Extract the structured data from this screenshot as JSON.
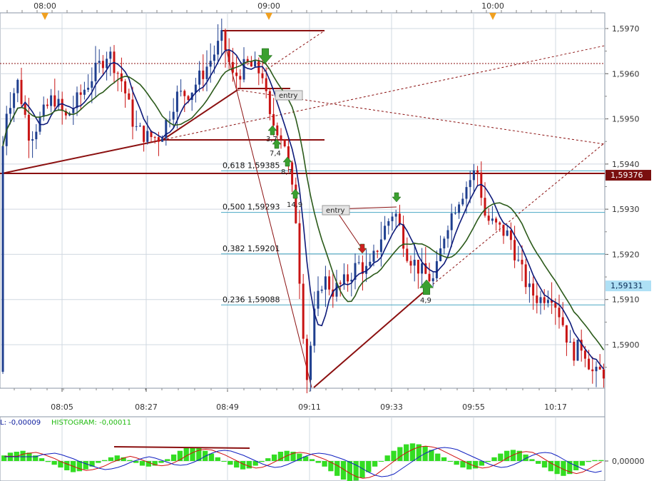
{
  "colors": {
    "background": "#ffffff",
    "grid": "#d0d8e0",
    "bull_candle": "#1f3f8f",
    "bear_candle": "#c81414",
    "ma_fast": "#0d1a7a",
    "ma_slow": "#2b5a1a",
    "trendline": "#8b1010",
    "fib_line": "#4aa8c4",
    "macd_hist": "#33dd22",
    "macd_line_a": "#d01010",
    "macd_line_b": "#1020c0",
    "price_tag_dark": "#7a0f0f",
    "price_tag_light": "#aee0f5",
    "arrow_buy": "#3aa030",
    "arrow_sell": "#d02020",
    "time_marker": "#f0a020"
  },
  "chart_data": {
    "type": "candlestick",
    "x_ticks": [
      "08:05",
      "08:27",
      "08:49",
      "09:11",
      "09:33",
      "09:55",
      "10:17"
    ],
    "top_time_labels": [
      "08:00",
      "09:00",
      "10:00"
    ],
    "y_ticks": [
      "1,5970",
      "1,5960",
      "1,5950",
      "1,5940",
      "1,5930",
      "1,5920",
      "1,5910",
      "1,5900"
    ],
    "ylim": [
      1.589,
      1.5972
    ],
    "price_tags": [
      {
        "label": "1,59376",
        "value": 1.59376,
        "style": "dark"
      },
      {
        "label": "1,59131",
        "value": 1.59131,
        "style": "light"
      }
    ],
    "fibonacci": [
      {
        "label": "0,618 1,59385",
        "value": 1.59385
      },
      {
        "label": "0,500 1,59293",
        "value": 1.59293
      },
      {
        "label": "0,382 1,59201",
        "value": 1.59201
      },
      {
        "label": "0,236 1,59088",
        "value": 1.59088
      }
    ],
    "annotations": [
      {
        "text": "entry"
      },
      {
        "text": "entry"
      },
      {
        "text": "3,7"
      },
      {
        "text": "7,4"
      },
      {
        "text": "8,7"
      },
      {
        "text": "14,9"
      },
      {
        "text": "4,9"
      }
    ],
    "macd": {
      "header": "L: -0,00009",
      "histogram_label": "HISTOGRAM: -0,00011",
      "zero_label": "0,00000",
      "histogram": [
        0.3,
        0.45,
        0.5,
        0.55,
        0.45,
        0.3,
        0.15,
        -0.05,
        -0.2,
        -0.35,
        -0.5,
        -0.6,
        -0.55,
        -0.45,
        -0.3,
        -0.1,
        0.05,
        0.2,
        0.3,
        0.2,
        0.05,
        -0.1,
        -0.25,
        -0.3,
        -0.25,
        -0.1,
        0.1,
        0.35,
        0.55,
        0.7,
        0.75,
        0.7,
        0.55,
        0.4,
        0.2,
        0.0,
        -0.2,
        -0.35,
        -0.45,
        -0.4,
        -0.25,
        -0.05,
        0.15,
        0.35,
        0.5,
        0.55,
        0.5,
        0.4,
        0.25,
        0.1,
        -0.1,
        -0.3,
        -0.55,
        -0.8,
        -1.0,
        -1.1,
        -1.05,
        -0.9,
        -0.6,
        -0.3,
        0.0,
        0.3,
        0.55,
        0.75,
        0.9,
        0.95,
        0.9,
        0.8,
        0.6,
        0.4,
        0.2,
        0.0,
        -0.2,
        -0.35,
        -0.45,
        -0.4,
        -0.25,
        -0.05,
        0.2,
        0.4,
        0.55,
        0.6,
        0.55,
        0.35,
        0.1,
        -0.15,
        -0.35,
        -0.55,
        -0.7,
        -0.8,
        -0.7,
        -0.5,
        -0.25,
        -0.05,
        0.05,
        0.05
      ]
    }
  }
}
